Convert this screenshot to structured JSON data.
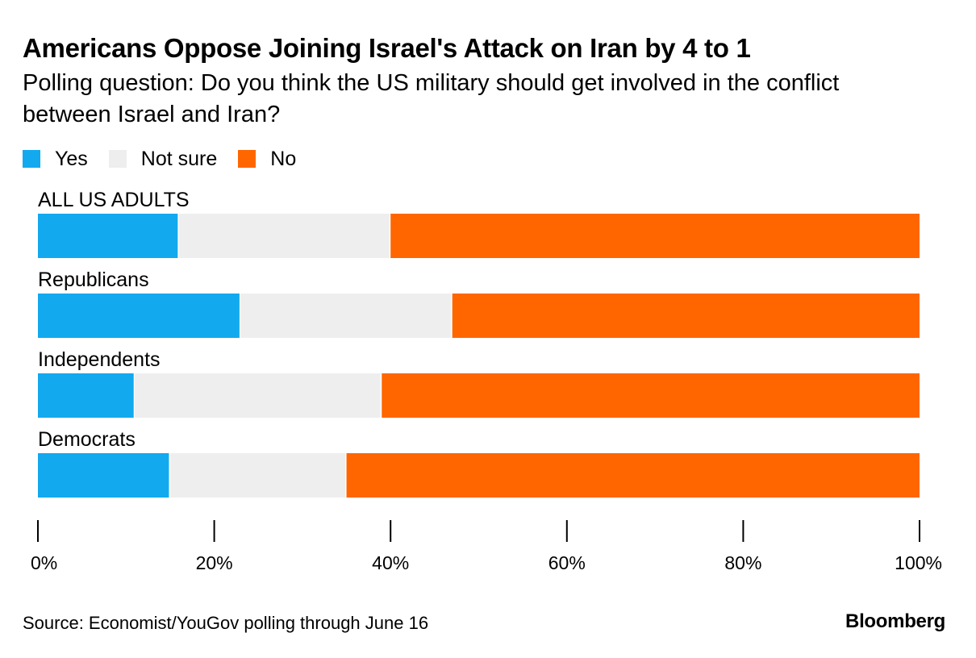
{
  "chart_data": {
    "type": "bar",
    "orientation": "horizontal",
    "stacked": true,
    "title": "Americans Oppose Joining Israel's Attack on Iran by 4 to 1",
    "subtitle": "Polling question: Do you think the US military should get involved in the conflict between Israel and Iran?",
    "categories": [
      "ALL US ADULTS",
      "Republicans",
      "Independents",
      "Democrats"
    ],
    "series": [
      {
        "name": "Yes",
        "color": "#12A9EF",
        "values": [
          16,
          23,
          11,
          15
        ]
      },
      {
        "name": "Not sure",
        "color": "#EEEEEE",
        "values": [
          24,
          24,
          28,
          20
        ]
      },
      {
        "name": "No",
        "color": "#FF6600",
        "values": [
          60,
          53,
          61,
          65
        ]
      }
    ],
    "xlim": [
      0,
      100
    ],
    "xticks": [
      0,
      20,
      40,
      60,
      80,
      100
    ],
    "xtick_labels": [
      "0%",
      "20%",
      "40%",
      "60%",
      "80%",
      "100%"
    ],
    "xlabel": "",
    "ylabel": "",
    "legend_position": "top-left",
    "source": "Source: Economist/YouGov polling through June 16",
    "brand": "Bloomberg"
  }
}
